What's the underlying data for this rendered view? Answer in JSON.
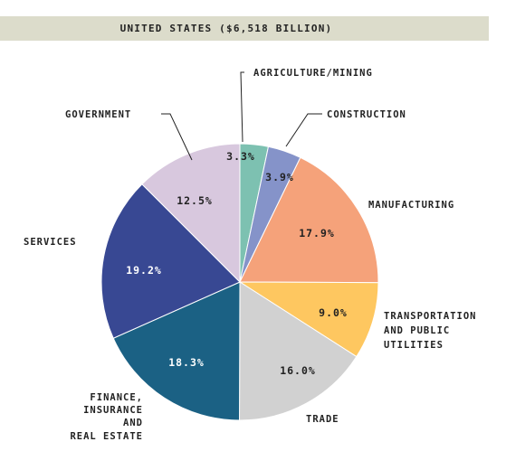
{
  "chart_data": {
    "type": "pie",
    "title": "UNITED STATES ($6,518 BILLION)",
    "slices": [
      {
        "label": "AGRICULTURE/MINING",
        "value": 3.3,
        "value_label": "3.3%",
        "color": "#7dc1b1",
        "text_color": "#222222"
      },
      {
        "label": "CONSTRUCTION",
        "value": 3.9,
        "value_label": "3.9%",
        "color": "#8593c9",
        "text_color": "#222222"
      },
      {
        "label": "MANUFACTURING",
        "value": 17.9,
        "value_label": "17.9%",
        "color": "#f5a27a",
        "text_color": "#222222"
      },
      {
        "label": "TRANSPORTATION AND PUBLIC UTILITIES",
        "value": 9.0,
        "value_label": "9.0%",
        "color": "#fec760",
        "text_color": "#222222"
      },
      {
        "label": "TRADE",
        "value": 16.0,
        "value_label": "16.0%",
        "color": "#d1d1d1",
        "text_color": "#222222"
      },
      {
        "label": "FINANCE, INSURANCE AND REAL ESTATE",
        "value": 18.3,
        "value_label": "18.3%",
        "color": "#1b6184",
        "text_color": "#ffffff"
      },
      {
        "label": "SERVICES",
        "value": 19.2,
        "value_label": "19.2%",
        "color": "#384893",
        "text_color": "#ffffff"
      },
      {
        "label": "GOVERNMENT",
        "value": 12.5,
        "value_label": "12.5%",
        "color": "#d8c8de",
        "text_color": "#222222"
      }
    ]
  }
}
